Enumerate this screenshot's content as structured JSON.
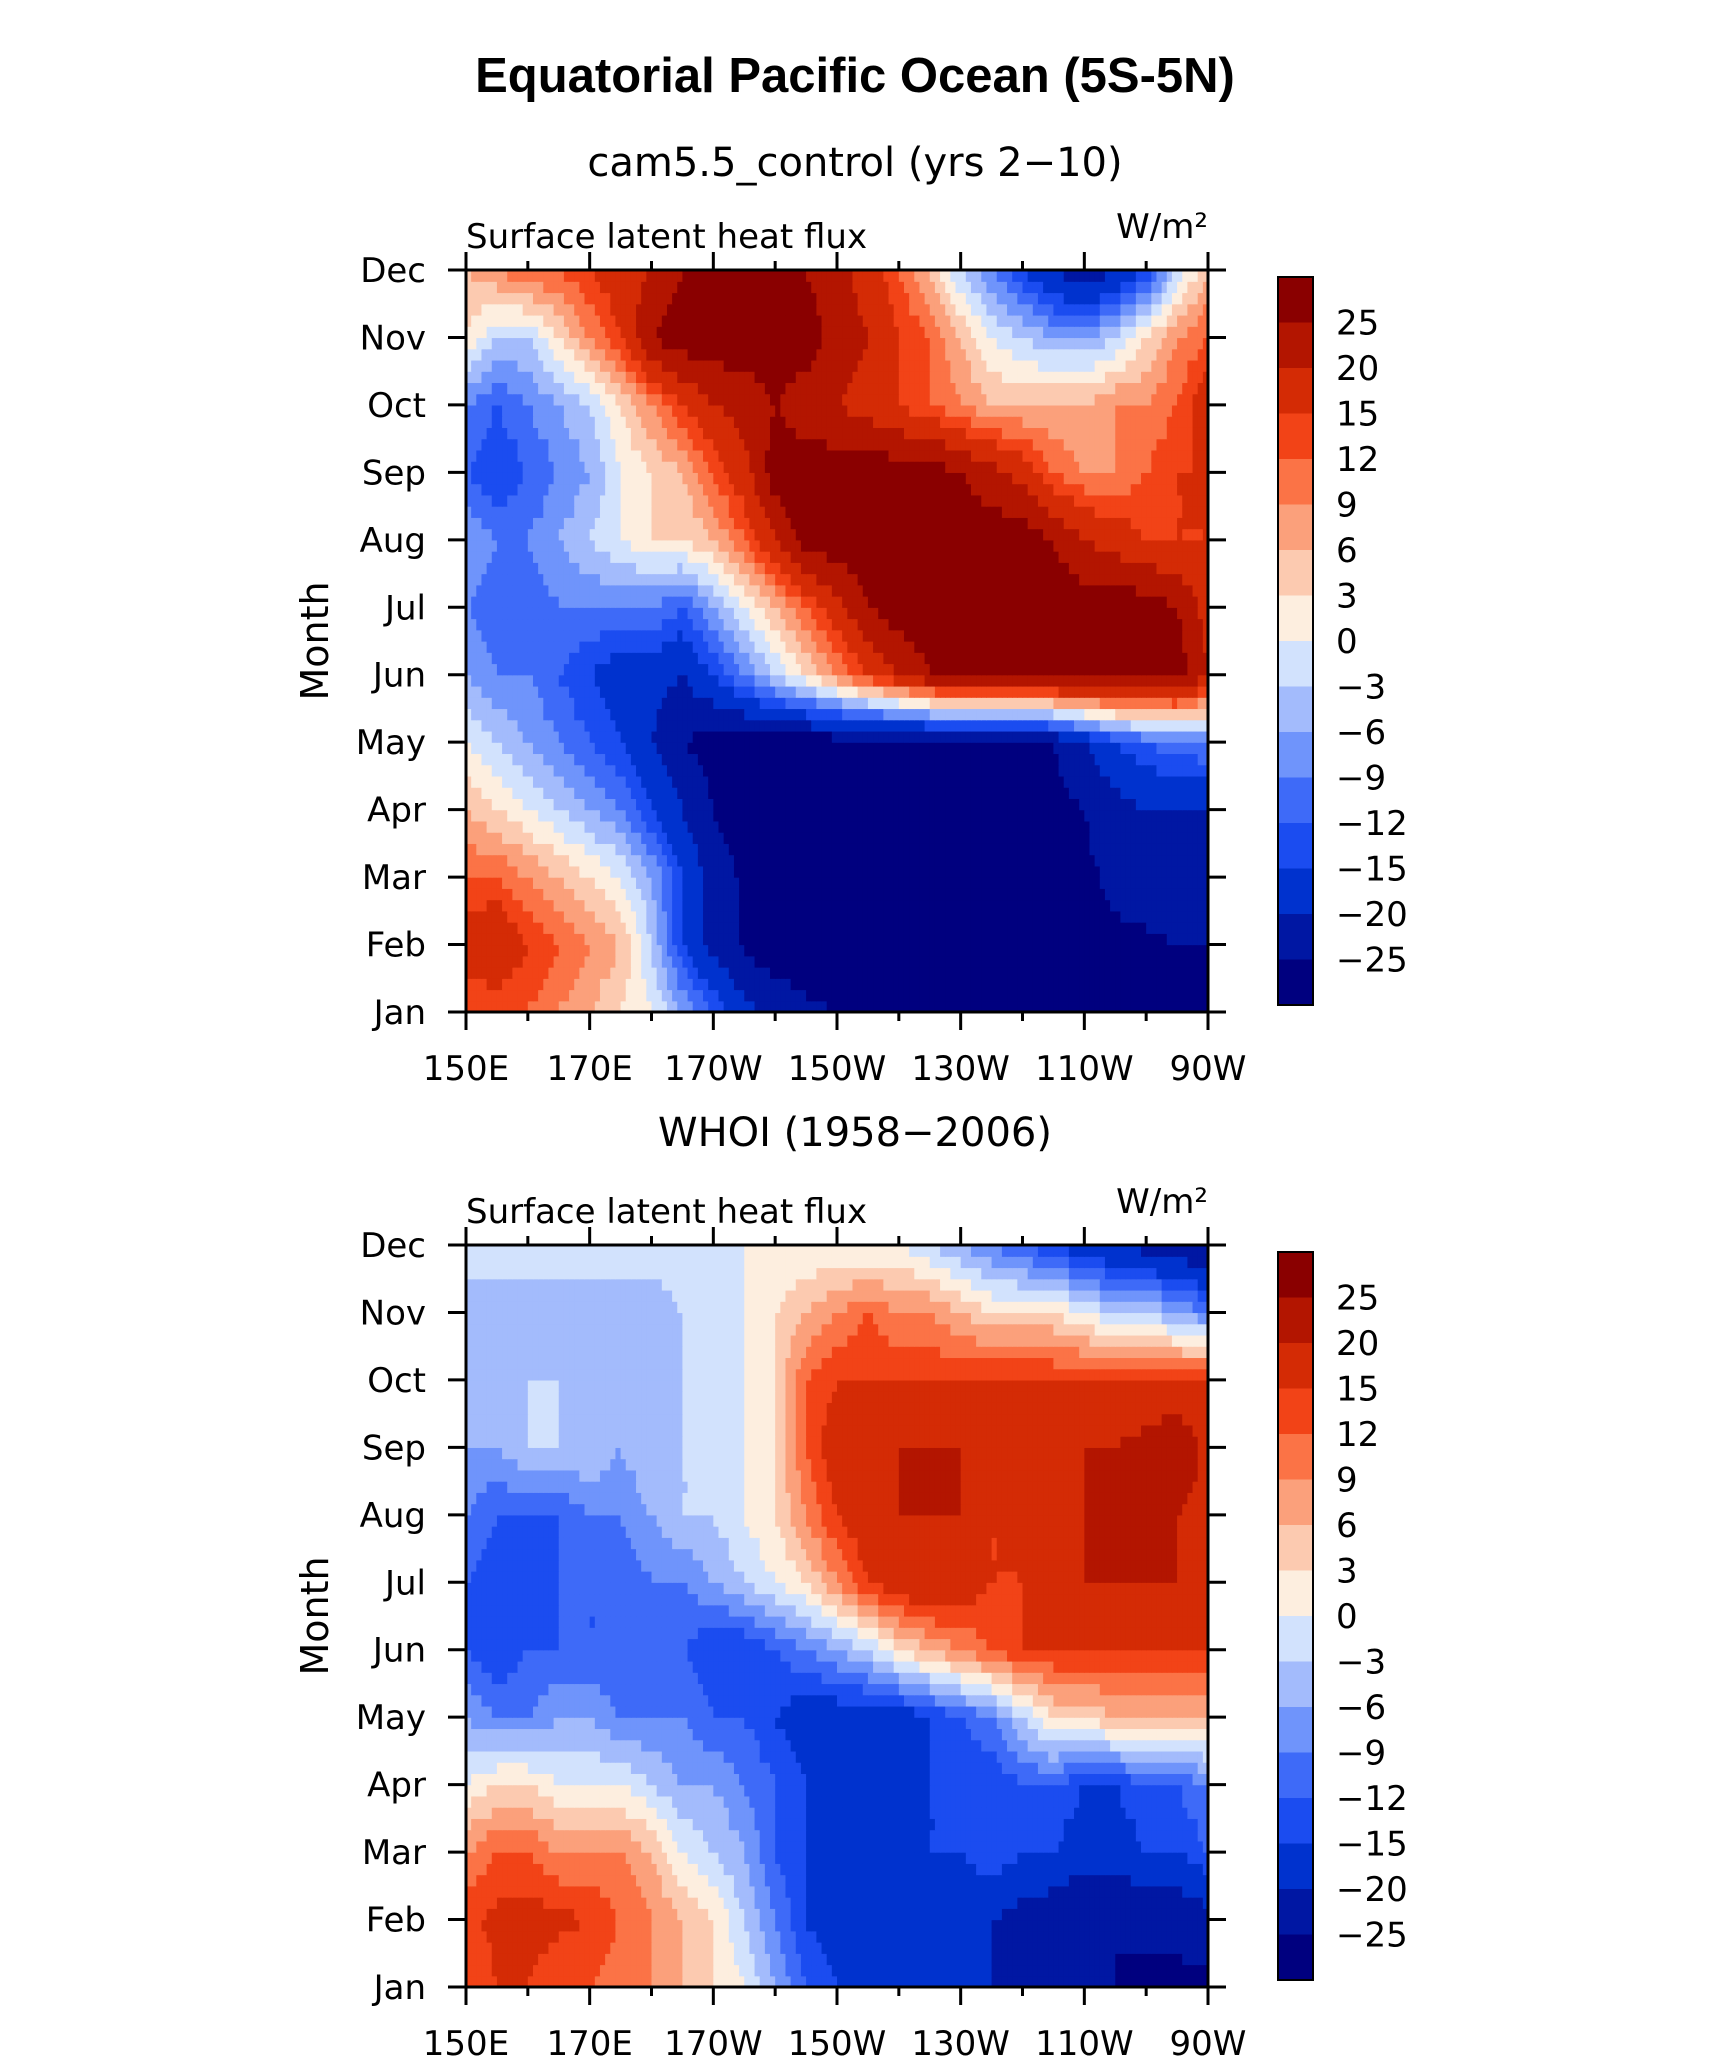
{
  "title": "Equatorial Pacific Ocean (5S-5N)",
  "colors": [
    "#00007f",
    "#0017a3",
    "#0032ce",
    "#1b4cf0",
    "#3e6af8",
    "#6f94fb",
    "#a3bbfc",
    "#d2e2fd",
    "#fdeedf",
    "#fccab0",
    "#fba07b",
    "#fb7346",
    "#f24317",
    "#d42b05",
    "#b31500",
    "#8a0000"
  ],
  "chart_data": [
    {
      "type": "heatmap",
      "panel_title": "cam5.5_control (yrs 2−10)",
      "left_label": "Surface latent heat flux",
      "units": "W/m²",
      "ylabel": "Month",
      "xticks": [
        "150E",
        "170E",
        "170W",
        "150W",
        "130W",
        "110W",
        "90W"
      ],
      "yticks": [
        "Jan",
        "Feb",
        "Mar",
        "Apr",
        "May",
        "Jun",
        "Jul",
        "Aug",
        "Sep",
        "Oct",
        "Nov",
        "Dec"
      ],
      "xlim": [
        150,
        270
      ],
      "colorbar_levels": [
        "25",
        "20",
        "15",
        "12",
        "9",
        "6",
        "3",
        "0",
        "−3",
        "−6",
        "−9",
        "−12",
        "−15",
        "−20",
        "−25"
      ],
      "grid": {
        "x": [
          150,
          155,
          160,
          165,
          170,
          175,
          180,
          185,
          190,
          195,
          200,
          205,
          210,
          215,
          220,
          225,
          230,
          235,
          240,
          245,
          250,
          255,
          260,
          265,
          270
        ],
        "y": [
          "Jan",
          "Feb",
          "Mar",
          "Apr",
          "May",
          "Jun",
          "Jul",
          "Aug",
          "Sep",
          "Oct",
          "Nov",
          "Dec"
        ],
        "z": [
          [
            12,
            12,
            12,
            9,
            6,
            3,
            0,
            -6,
            -12,
            -18,
            -22,
            -24,
            -25,
            -26,
            -27,
            -27,
            -27,
            -27,
            -27,
            -27,
            -27,
            -27,
            -27,
            -27,
            -27
          ],
          [
            18,
            20,
            15,
            12,
            9,
            6,
            -3,
            -15,
            -22,
            -26,
            -28,
            -28,
            -28,
            -28,
            -28,
            -28,
            -28,
            -28,
            -28,
            -28,
            -27,
            -26,
            -26,
            -25,
            -25
          ],
          [
            12,
            12,
            9,
            6,
            3,
            0,
            -6,
            -15,
            -22,
            -26,
            -28,
            -28,
            -28,
            -28,
            -28,
            -28,
            -28,
            -28,
            -28,
            -28,
            -26,
            -24,
            -22,
            -22,
            -22
          ],
          [
            6,
            3,
            0,
            -3,
            -6,
            -9,
            -15,
            -20,
            -25,
            -28,
            -28,
            -28,
            -28,
            -28,
            -28,
            -28,
            -28,
            -28,
            -28,
            -27,
            -25,
            -22,
            -20,
            -20,
            -20
          ],
          [
            0,
            -3,
            -6,
            -9,
            -12,
            -15,
            -20,
            -25,
            -27,
            -28,
            -28,
            -28,
            -28,
            -28,
            -28,
            -28,
            -28,
            -28,
            -27,
            -25,
            -20,
            -15,
            -12,
            -10,
            -9
          ],
          [
            -6,
            -9,
            -9,
            -12,
            -15,
            -18,
            -18,
            -20,
            -15,
            -9,
            -3,
            3,
            9,
            15,
            20,
            25,
            28,
            28,
            28,
            28,
            28,
            28,
            28,
            28,
            20
          ],
          [
            -9,
            -12,
            -12,
            -9,
            -9,
            -9,
            -9,
            -12,
            -6,
            0,
            6,
            12,
            18,
            25,
            28,
            28,
            28,
            28,
            28,
            28,
            28,
            28,
            28,
            25,
            18
          ],
          [
            -6,
            -9,
            -9,
            -6,
            -3,
            0,
            3,
            3,
            6,
            12,
            20,
            28,
            28,
            28,
            28,
            28,
            28,
            28,
            28,
            25,
            20,
            18,
            15,
            15,
            15
          ],
          [
            -12,
            -15,
            -12,
            -9,
            -6,
            0,
            3,
            6,
            12,
            18,
            28,
            28,
            28,
            28,
            28,
            28,
            25,
            22,
            18,
            12,
            9,
            9,
            12,
            15,
            15
          ],
          [
            -9,
            -12,
            -9,
            -6,
            -3,
            3,
            9,
            15,
            20,
            22,
            25,
            22,
            20,
            18,
            15,
            12,
            9,
            6,
            6,
            6,
            6,
            9,
            9,
            12,
            18
          ],
          [
            3,
            -3,
            -3,
            3,
            9,
            15,
            25,
            28,
            28,
            28,
            28,
            28,
            22,
            20,
            15,
            12,
            6,
            0,
            -3,
            -6,
            -6,
            -3,
            3,
            9,
            12
          ],
          [
            6,
            9,
            12,
            12,
            15,
            18,
            20,
            25,
            28,
            28,
            28,
            25,
            22,
            18,
            12,
            6,
            -3,
            -9,
            -15,
            -20,
            -25,
            -20,
            -15,
            -3,
            6
          ]
        ]
      }
    },
    {
      "type": "heatmap",
      "panel_title": "WHOI (1958−2006)",
      "left_label": "Surface latent heat flux",
      "units": "W/m²",
      "ylabel": "Month",
      "xticks": [
        "150E",
        "170E",
        "170W",
        "150W",
        "130W",
        "110W",
        "90W"
      ],
      "yticks": [
        "Jan",
        "Feb",
        "Mar",
        "Apr",
        "May",
        "Jun",
        "Jul",
        "Aug",
        "Sep",
        "Oct",
        "Nov",
        "Dec"
      ],
      "xlim": [
        150,
        270
      ],
      "colorbar_levels": [
        "25",
        "20",
        "15",
        "12",
        "9",
        "6",
        "3",
        "0",
        "−3",
        "−6",
        "−9",
        "−12",
        "−15",
        "−20",
        "−25"
      ],
      "grid": {
        "x": [
          150,
          155,
          160,
          165,
          170,
          175,
          180,
          185,
          190,
          195,
          200,
          205,
          210,
          215,
          220,
          225,
          230,
          235,
          240,
          245,
          250,
          255,
          260,
          265,
          270
        ],
        "y": [
          "Jan",
          "Feb",
          "Mar",
          "Apr",
          "May",
          "Jun",
          "Jul",
          "Aug",
          "Sep",
          "Oct",
          "Nov",
          "Dec"
        ],
        "z": [
          [
            12,
            15,
            15,
            12,
            12,
            9,
            9,
            6,
            3,
            0,
            -6,
            -12,
            -15,
            -18,
            -20,
            -20,
            -20,
            -20,
            -22,
            -24,
            -24,
            -25,
            -26,
            -26,
            -26
          ],
          [
            14,
            16,
            17,
            16,
            15,
            12,
            9,
            6,
            3,
            -3,
            -9,
            -15,
            -18,
            -20,
            -20,
            -20,
            -20,
            -20,
            -22,
            -24,
            -25,
            -25,
            -24,
            -24,
            -22
          ],
          [
            9,
            12,
            12,
            9,
            9,
            9,
            6,
            0,
            -3,
            -6,
            -12,
            -15,
            -18,
            -18,
            -18,
            -15,
            -15,
            -12,
            -15,
            -15,
            -18,
            -18,
            -15,
            -15,
            -12
          ],
          [
            0,
            3,
            3,
            0,
            0,
            0,
            -3,
            -6,
            -6,
            -9,
            -12,
            -15,
            -18,
            -18,
            -18,
            -15,
            -15,
            -15,
            -12,
            -12,
            -15,
            -15,
            -12,
            -12,
            -9
          ],
          [
            -6,
            -9,
            -9,
            -6,
            -6,
            -9,
            -9,
            -9,
            -12,
            -12,
            -15,
            -18,
            -18,
            -18,
            -18,
            -15,
            -12,
            -9,
            -3,
            3,
            3,
            6,
            6,
            6,
            6
          ],
          [
            -12,
            -15,
            -12,
            -12,
            -12,
            -12,
            -12,
            -12,
            -15,
            -15,
            -12,
            -9,
            -6,
            -3,
            3,
            6,
            9,
            12,
            15,
            15,
            15,
            15,
            15,
            15,
            15
          ],
          [
            -12,
            -15,
            -15,
            -12,
            -12,
            -12,
            -9,
            -9,
            -6,
            -3,
            0,
            3,
            9,
            15,
            18,
            20,
            18,
            15,
            15,
            18,
            20,
            20,
            20,
            20,
            18
          ],
          [
            -9,
            -12,
            -12,
            -12,
            -9,
            -9,
            -6,
            -3,
            -3,
            0,
            3,
            9,
            15,
            18,
            20,
            20,
            20,
            15,
            15,
            18,
            20,
            20,
            20,
            20,
            18
          ],
          [
            -6,
            -6,
            -3,
            -3,
            -3,
            -6,
            -3,
            -3,
            -3,
            0,
            3,
            12,
            18,
            18,
            20,
            20,
            20,
            18,
            18,
            20,
            20,
            20,
            22,
            25,
            18
          ],
          [
            -3,
            -3,
            -3,
            -3,
            -6,
            -6,
            -6,
            -3,
            -3,
            0,
            3,
            12,
            15,
            15,
            15,
            15,
            15,
            15,
            15,
            15,
            15,
            15,
            15,
            15,
            15
          ],
          [
            -6,
            -6,
            -6,
            -6,
            -6,
            -6,
            -6,
            -3,
            -3,
            0,
            3,
            6,
            9,
            12,
            9,
            9,
            6,
            3,
            3,
            3,
            0,
            -3,
            -3,
            -6,
            -9
          ],
          [
            0,
            0,
            0,
            0,
            0,
            0,
            0,
            0,
            0,
            0,
            0,
            0,
            0,
            0,
            0,
            -3,
            -6,
            -9,
            -12,
            -15,
            -18,
            -20,
            -22,
            -24,
            -25
          ]
        ]
      }
    }
  ]
}
